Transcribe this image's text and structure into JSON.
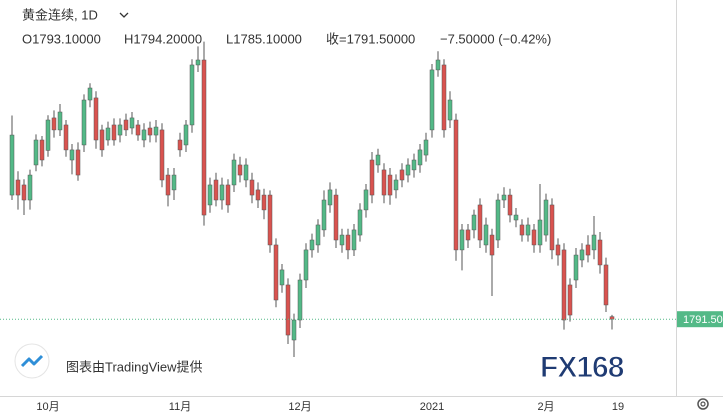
{
  "header": {
    "symbol": "黄金连续, 1D",
    "open": "O1793.10000",
    "high": "H1794.20000",
    "low": "L1785.10000",
    "close": "收=1791.50000",
    "change": "−7.50000 (−0.42%)"
  },
  "watermark": {
    "credit": "图表由TradingView提供",
    "logo": "FX168"
  },
  "chart_data": {
    "type": "candlestick",
    "up_color": "#53b987",
    "down_color": "#d9534f",
    "ylim": [
      1741,
      1991
    ],
    "last_price": {
      "value": 1791.5,
      "label": "1791.50"
    },
    "categories": [
      null,
      null,
      null,
      null,
      null,
      null,
      "10月",
      null,
      null,
      null,
      null,
      null,
      null,
      null,
      null,
      null,
      null,
      null,
      null,
      null,
      null,
      null,
      null,
      null,
      null,
      null,
      null,
      null,
      "11月",
      null,
      null,
      null,
      null,
      null,
      null,
      null,
      null,
      null,
      null,
      null,
      null,
      null,
      null,
      null,
      null,
      null,
      null,
      null,
      "12月",
      null,
      null,
      null,
      null,
      null,
      null,
      null,
      null,
      null,
      null,
      null,
      null,
      null,
      null,
      null,
      null,
      null,
      null,
      null,
      null,
      null,
      "2021",
      null,
      null,
      null,
      null,
      null,
      null,
      null,
      null,
      null,
      null,
      null,
      null,
      null,
      null,
      null,
      null,
      null,
      null,
      "2月",
      null,
      null,
      null,
      null,
      null,
      null,
      null,
      null,
      null,
      null,
      null,
      "19"
    ],
    "open": [
      1869.1,
      1878.5,
      1875.4,
      1866,
      1887.9,
      1903.5,
      1897,
      1917.3,
      1909.8,
      1912.9,
      1891,
      1897.3,
      1900.4,
      1928.5,
      1929.8,
      1909.8,
      1903.5,
      1912.9,
      1906.6,
      1916,
      1911,
      1912.9,
      1903.5,
      1911,
      1906.6,
      1909.8,
      1881.6,
      1872.3,
      1903.5,
      1900.4,
      1912.9,
      1950.4,
      1953.5,
      1862.9,
      1878.5,
      1866,
      1875.4,
      1875.4,
      1887.9,
      1878.5,
      1878.5,
      1872.3,
      1869.1,
      1869.1,
      1837.9,
      1812.9,
      1812.9,
      1778.5,
      1791,
      1816,
      1834.8,
      1837.9,
      1847.3,
      1862.9,
      1869.1,
      1837.9,
      1844.1,
      1834.8,
      1844.1,
      1859.8,
      1891,
      1887.9,
      1884.8,
      1881.6,
      1872.3,
      1884.8,
      1881.6,
      1884.8,
      1887.9,
      1894.1,
      1909.8,
      1947.3,
      1950.4,
      1916,
      1916,
      1834.8,
      1847.3,
      1847.3,
      1862.9,
      1837.9,
      1844.1,
      1841,
      1866,
      1869.1,
      1853.5,
      1850.4,
      1844.1,
      1847.3,
      1837.9,
      1844.1,
      1862.9,
      1837.9,
      1834.8,
      1812.9,
      1816,
      1828.5,
      1837.9,
      1834.8,
      1841,
      1825.4,
      1793.1,
      null
    ],
    "high": [
      1918.8,
      1884,
      1879,
      1885,
      1907,
      1906,
      1919,
      1922,
      1926,
      1916,
      1901,
      1902,
      1932,
      1939,
      1934,
      1913,
      1915,
      1917,
      1917,
      1920,
      1921,
      1916,
      1914,
      1915,
      1916,
      1914,
      1886,
      1886,
      1908,
      1916,
      1954,
      1962,
      1965,
      1880,
      1883,
      1880,
      1879,
      1895,
      1893,
      1892,
      1883,
      1877,
      1873,
      1872,
      1842,
      1826,
      1817,
      1795,
      1820,
      1839,
      1845,
      1854,
      1872,
      1877,
      1873,
      1848,
      1848,
      1851,
      1864,
      1876,
      1896,
      1898,
      1889,
      1886,
      1882,
      1889,
      1892,
      1895,
      1901,
      1908,
      1951,
      1959,
      1954,
      1934,
      1920,
      1851,
      1851,
      1860,
      1867,
      1855,
      1848,
      1870,
      1874,
      1873,
      1861,
      1854,
      1855,
      1851,
      1876,
      1870,
      1867,
      1842,
      1839,
      1817,
      1836,
      1839,
      1844,
      1856,
      1846,
      1830,
      1794.2,
      null
    ],
    "low": [
      1866,
      1860,
      1856.6,
      1860,
      1884,
      1887,
      1893,
      1905,
      1906,
      1893,
      1882,
      1878,
      1896,
      1924,
      1898,
      1893,
      1900,
      1900,
      1902,
      1906,
      1907,
      1903,
      1899,
      1902,
      1902,
      1874,
      1862,
      1866,
      1893,
      1896,
      1908,
      1946,
      1850,
      1858,
      1862,
      1860,
      1858,
      1871,
      1877,
      1874,
      1864,
      1861,
      1854,
      1833,
      1799,
      1808,
      1776,
      1767.9,
      1786,
      1811,
      1830,
      1833,
      1843,
      1858,
      1836,
      1833,
      1829,
      1831,
      1840,
      1855,
      1864,
      1883,
      1864,
      1863,
      1867,
      1874,
      1877,
      1880,
      1883,
      1890,
      1905,
      1943,
      1905,
      1911,
      1828,
      1822,
      1836,
      1842,
      1836,
      1833,
      1806,
      1836,
      1861,
      1852,
      1849,
      1840,
      1840,
      1833,
      1833,
      1840,
      1829,
      1825,
      1785,
      1790,
      1811,
      1824,
      1827,
      1829,
      1820,
      1796,
      1785.1,
      null
    ],
    "close": [
      1906.6,
      1869.1,
      1866,
      1881.6,
      1903.5,
      1891,
      1916,
      1909.8,
      1921,
      1897.3,
      1897.3,
      1881.6,
      1928.5,
      1936,
      1903.5,
      1897.3,
      1911,
      1903.5,
      1912.9,
      1909.8,
      1917.3,
      1906.6,
      1909.8,
      1906.6,
      1911.6,
      1878.5,
      1869.1,
      1881.6,
      1897.3,
      1912.9,
      1950.4,
      1953.5,
      1856.6,
      1875.4,
      1866,
      1875.4,
      1862.9,
      1891,
      1881.6,
      1887.9,
      1869.1,
      1866,
      1859.8,
      1837.9,
      1803.5,
      1822.3,
      1781.6,
      1791,
      1816,
      1834.8,
      1841,
      1850.4,
      1866,
      1872.3,
      1841,
      1844.1,
      1834.8,
      1847.3,
      1859.8,
      1872.3,
      1869.1,
      1894.1,
      1869.1,
      1869.1,
      1878.5,
      1878.5,
      1887.9,
      1891,
      1897.3,
      1903.5,
      1947.3,
      1953.5,
      1909.8,
      1928.5,
      1834.8,
      1847.3,
      1841,
      1856.6,
      1841,
      1850.4,
      1831.6,
      1866,
      1869.1,
      1856.6,
      1856.6,
      1844.1,
      1850.4,
      1837.9,
      1853.5,
      1866,
      1834.8,
      1831.6,
      1791,
      1794.1,
      1831.6,
      1834.8,
      1831.6,
      1844.1,
      1825.4,
      1800.4,
      1791.5,
      null
    ]
  }
}
